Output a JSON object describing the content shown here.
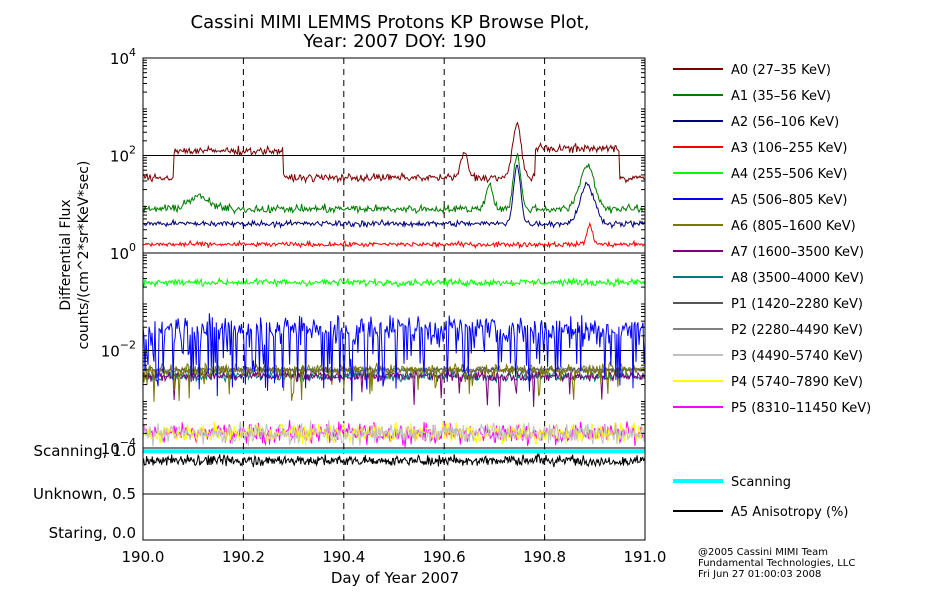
{
  "chart_data": {
    "type": "line",
    "title": "Cassini MIMI LEMMS Protons KP Browse Plot,",
    "subtitle": "Year: 2007 DOY: 190",
    "xlabel": "Day of Year 2007",
    "ylabel_line1": "Differential Flux",
    "ylabel_line2": "counts/(cm^2*sr*KeV*sec)",
    "x_range": [
      190.0,
      191.0
    ],
    "x_ticks": [
      "190.0",
      "190.2",
      "190.4",
      "190.6",
      "190.8",
      "191.0"
    ],
    "y_scale": "log",
    "y_range": [
      0.0001,
      10000
    ],
    "y_ticks": [
      {
        "base": "10",
        "exp": "4"
      },
      {
        "base": "10",
        "exp": "2"
      },
      {
        "base": "10",
        "exp": "0"
      },
      {
        "base": "10",
        "exp": "−2"
      },
      {
        "base": "10",
        "exp": "−4"
      }
    ],
    "mode_labels": [
      "Scanning, 1.0",
      "Unknown, 0.5",
      "Staring, 0.0"
    ],
    "grid": "dashed vertical lines at 190.2, 190.4, 190.6, 190.8; solid horizontal lines at 10^2, 10^0, 10^-2",
    "legend_position": "right",
    "series": [
      {
        "name": "A0 (27–35 KeV)",
        "color": "#7a0000",
        "typical_value": 35
      },
      {
        "name": "A1 (35–56 KeV)",
        "color": "#007a00",
        "typical_value": 8
      },
      {
        "name": "A2 (56–106 KeV)",
        "color": "#00007a",
        "typical_value": 4
      },
      {
        "name": "A3 (106–255 KeV)",
        "color": "#ff0000",
        "typical_value": 1.5
      },
      {
        "name": "A4 (255–506 KeV)",
        "color": "#00ff00",
        "typical_value": 0.25
      },
      {
        "name": "A5 (506–805 KeV)",
        "color": "#0000ff",
        "typical_value": 0.03
      },
      {
        "name": "A6 (805–1600 KeV)",
        "color": "#7a7a00",
        "typical_value": 0.004
      },
      {
        "name": "A7 (1600–3500 KeV)",
        "color": "#7a007a",
        "typical_value": 0.003
      },
      {
        "name": "A8 (3500–4000 KeV)",
        "color": "#007a7a",
        "typical_value": 0.003
      },
      {
        "name": "P1 (1420–2280 KeV)",
        "color": "#555555",
        "typical_value": 0.004
      },
      {
        "name": "P2 (2280–4490 KeV)",
        "color": "#808080",
        "typical_value": 0.004
      },
      {
        "name": "P3 (4490–5740 KeV)",
        "color": "#c0c0c0",
        "typical_value": 0.0002
      },
      {
        "name": "P4 (5740–7890 KeV)",
        "color": "#ffff00",
        "typical_value": 0.0002
      },
      {
        "name": "P5 (8310–11450 KeV)",
        "color": "#ff00ff",
        "typical_value": 0.0002
      }
    ],
    "mode_series": [
      {
        "name": "Scanning",
        "color": "#00ffff",
        "value": 1.0
      },
      {
        "name": "A5 Anisotropy (%)",
        "color": "#000000",
        "typical_value": 0.9
      }
    ]
  },
  "credits": [
    "@2005 Cassini MIMI Team",
    "Fundamental Technologies, LLC",
    "Fri Jun 27 01:00:03 2008"
  ]
}
